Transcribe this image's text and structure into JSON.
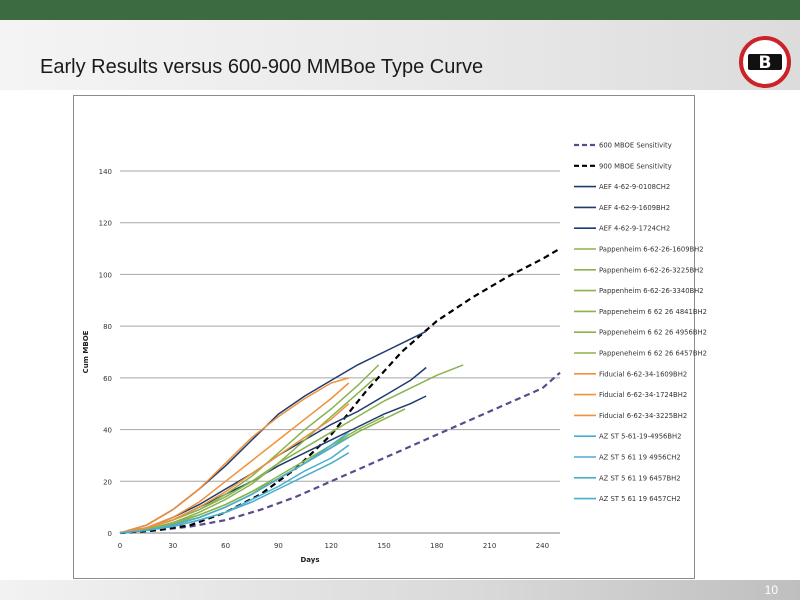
{
  "slide": {
    "title": "Early Results versus 600-900 MMBoe Type Curve",
    "page_number": "10",
    "logo_letter": "B"
  },
  "colors": {
    "top_bar": "#3d6b41",
    "logo_red": "#cc2229"
  },
  "chart_data": {
    "type": "line",
    "title": "",
    "xlabel": "Days",
    "ylabel": "Cum MBOE",
    "xlim": [
      0,
      250
    ],
    "ylim": [
      0,
      140
    ],
    "x_ticks": [
      0,
      30,
      60,
      90,
      120,
      150,
      180,
      210,
      240
    ],
    "y_ticks": [
      0,
      20,
      40,
      60,
      80,
      100,
      120,
      140
    ],
    "grid": "horizontal",
    "legend_position": "right",
    "series": [
      {
        "name": "600 MBOE Sensitivity",
        "color": "#5b4a8f",
        "style": "dashed",
        "x": [
          0,
          20,
          40,
          60,
          80,
          100,
          120,
          140,
          160,
          180,
          200,
          220,
          240,
          250
        ],
        "y": [
          0,
          1,
          2.5,
          5,
          9,
          14,
          20,
          26,
          32,
          38,
          44,
          50,
          56,
          62
        ]
      },
      {
        "name": "900 MBOE Sensitivity",
        "color": "#000000",
        "style": "dashed",
        "x": [
          0,
          20,
          40,
          60,
          80,
          100,
          120,
          140,
          160,
          180,
          200,
          220,
          240,
          250
        ],
        "y": [
          0,
          1,
          3,
          8,
          15,
          25,
          38,
          55,
          70,
          82,
          91,
          99,
          106,
          110
        ]
      },
      {
        "name": "AEF 4-62-9-0108CH2",
        "color": "#1f3a6e",
        "style": "solid",
        "x": [
          0,
          15,
          30,
          45,
          60,
          75,
          90,
          105,
          120,
          135,
          150,
          165,
          174
        ],
        "y": [
          0,
          3,
          9,
          17,
          26,
          36,
          46,
          53,
          59,
          65,
          70,
          75,
          78
        ]
      },
      {
        "name": "AEF 4-62-9-1609BH2",
        "color": "#1f3a6e",
        "style": "solid",
        "x": [
          0,
          15,
          30,
          45,
          60,
          75,
          90,
          105,
          120,
          135,
          150,
          165,
          174
        ],
        "y": [
          0,
          2,
          6,
          11,
          17,
          23,
          30,
          36,
          42,
          47,
          53,
          59,
          64
        ]
      },
      {
        "name": "AEF 4-62-9-1724CH2",
        "color": "#1f3a6e",
        "style": "solid",
        "x": [
          0,
          15,
          30,
          45,
          60,
          75,
          90,
          105,
          120,
          135,
          150,
          165,
          174
        ],
        "y": [
          0,
          2,
          5,
          10,
          15,
          20,
          26,
          31,
          36,
          41,
          46,
          50,
          53
        ]
      },
      {
        "name": "Pappenheim 6-62-26-1609BH2",
        "color": "#8ab34f",
        "style": "solid",
        "x": [
          0,
          15,
          30,
          45,
          60,
          75,
          90,
          105,
          120,
          135,
          150,
          165,
          180,
          195
        ],
        "y": [
          0,
          2,
          5,
          9,
          14,
          20,
          27,
          33,
          39,
          45,
          51,
          56,
          61,
          65
        ]
      },
      {
        "name": "Pappenheim 6-62-26-3225BH2",
        "color": "#8ab34f",
        "style": "solid",
        "x": [
          0,
          15,
          30,
          45,
          60,
          75,
          90,
          105,
          120,
          135,
          145
        ],
        "y": [
          0,
          1.5,
          4,
          8,
          13,
          19,
          27,
          36,
          45,
          54,
          60
        ]
      },
      {
        "name": "Pappenheim 6-62-26-3340BH2",
        "color": "#8ab34f",
        "style": "solid",
        "x": [
          0,
          15,
          30,
          45,
          60,
          75,
          90,
          105,
          120,
          135,
          147
        ],
        "y": [
          0,
          2,
          5,
          9,
          15,
          22,
          31,
          40,
          48,
          57,
          65
        ]
      },
      {
        "name": "Pappeneheim 6 62 26 4841BH2",
        "color": "#8ab34f",
        "style": "solid",
        "x": [
          0,
          15,
          30,
          45,
          60,
          75,
          90,
          105,
          120,
          135,
          150
        ],
        "y": [
          0,
          1.5,
          4,
          7,
          11,
          16,
          22,
          28,
          34,
          40,
          45
        ]
      },
      {
        "name": "Pappeneheim 6 62 26 4956BH2",
        "color": "#8ab34f",
        "style": "solid",
        "x": [
          0,
          15,
          30,
          45,
          60,
          75,
          90,
          105,
          120,
          135,
          150,
          162
        ],
        "y": [
          0,
          1.5,
          3.5,
          7,
          11,
          16,
          21,
          27,
          33,
          39,
          44,
          48
        ]
      },
      {
        "name": "Pappeneheim 6 62 26 6457BH2",
        "color": "#8ab34f",
        "style": "solid",
        "x": [
          0,
          15,
          30,
          45,
          60,
          75,
          90,
          105,
          120,
          130
        ],
        "y": [
          0,
          1.5,
          3.5,
          6,
          10,
          15,
          21,
          27,
          33,
          38
        ]
      },
      {
        "name": "Fiducial 6-62-34-1609BH2",
        "color": "#f0913c",
        "style": "solid",
        "x": [
          0,
          15,
          30,
          45,
          60,
          75,
          90,
          105,
          120,
          130
        ],
        "y": [
          0,
          3,
          9,
          17,
          27,
          37,
          45,
          52,
          58,
          60
        ]
      },
      {
        "name": "Fiducial 6-62-34-1724BH2",
        "color": "#f0913c",
        "style": "solid",
        "x": [
          0,
          15,
          30,
          45,
          60,
          75,
          90,
          105,
          120,
          130
        ],
        "y": [
          0,
          2,
          6,
          12,
          20,
          28,
          36,
          44,
          52,
          58
        ]
      },
      {
        "name": "Fiducial 6-62-34-3225BH2",
        "color": "#f0913c",
        "style": "solid",
        "x": [
          0,
          15,
          30,
          45,
          60,
          75,
          90,
          105,
          120,
          130
        ],
        "y": [
          0,
          2,
          5,
          10,
          16,
          23,
          30,
          37,
          44,
          50
        ]
      },
      {
        "name": "AZ ST 5-61-19-4956BH2",
        "color": "#4aaecb",
        "style": "solid",
        "x": [
          0,
          15,
          30,
          45,
          60,
          75,
          90,
          105,
          120,
          130
        ],
        "y": [
          0,
          1,
          3,
          6,
          10,
          15,
          21,
          27,
          33,
          37
        ]
      },
      {
        "name": "AZ ST 5 61 19 4956CH2",
        "color": "#4aaecb",
        "style": "solid",
        "x": [
          0,
          15,
          30,
          45,
          60,
          75,
          90,
          105,
          120,
          130
        ],
        "y": [
          0,
          1,
          2.5,
          5,
          8,
          13,
          18,
          24,
          29,
          34
        ]
      },
      {
        "name": "AZ ST 5 61 19 6457BH2",
        "color": "#4aaecb",
        "style": "solid",
        "x": [
          0,
          15,
          30,
          45,
          60,
          75,
          90,
          105,
          120,
          130
        ],
        "y": [
          0,
          1,
          2.5,
          5,
          8,
          12,
          17,
          22,
          27,
          31
        ]
      },
      {
        "name": "AZ ST 5 61 19 6457CH2",
        "color": "#4aaecb",
        "style": "solid",
        "x": [
          0,
          15,
          30,
          45,
          60,
          75,
          90,
          105,
          120,
          130
        ],
        "y": [
          0,
          1,
          3,
          6,
          10,
          15,
          21,
          27,
          34,
          39
        ]
      }
    ]
  }
}
